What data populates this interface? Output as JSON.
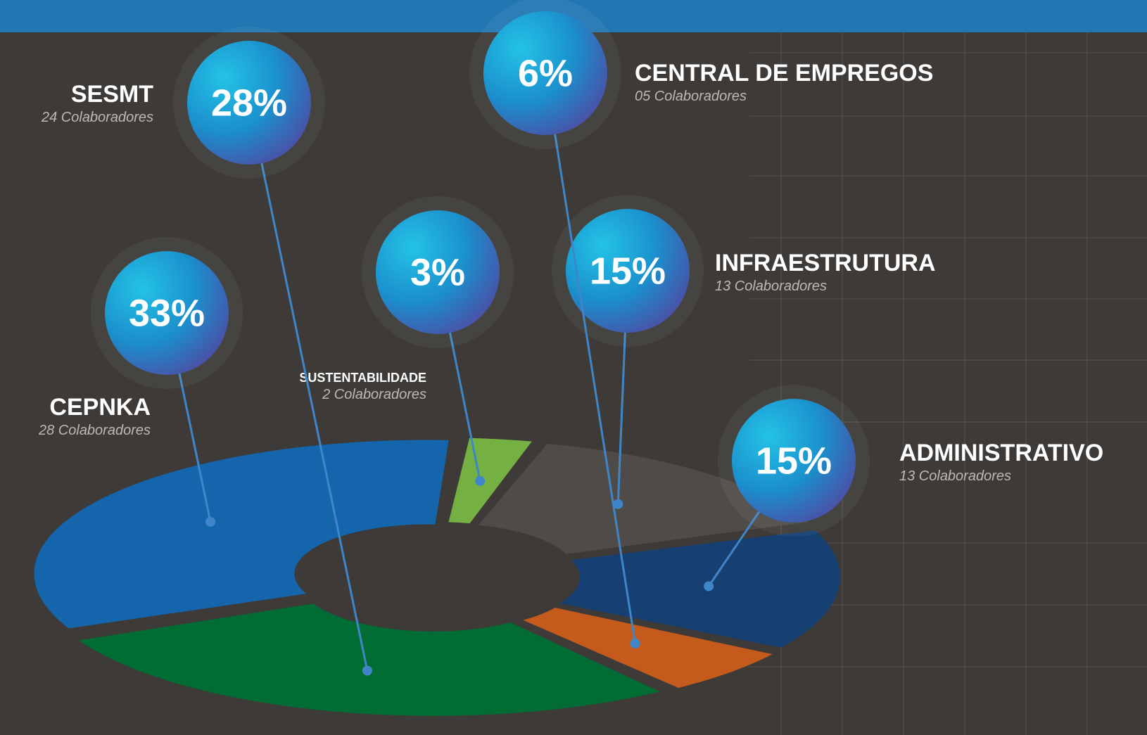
{
  "chart_data": {
    "type": "pie",
    "categories": [
      "CEPNKA",
      "SUSTENTABILIDADE",
      "INFRAESTRUTURA",
      "ADMINISTRATIVO",
      "CENTRAL DE EMPREGOS",
      "SESMT"
    ],
    "values": [
      33,
      3,
      15,
      15,
      6,
      28
    ],
    "value_labels": [
      "33%",
      "3%",
      "15%",
      "15%",
      "6%",
      "28%"
    ],
    "details": [
      "28 Colaboradores",
      "2 Colaboradores",
      "13 Colaboradores",
      "13 Colaboradores",
      "05 Colaboradores",
      "24 Colaboradores"
    ],
    "colors": [
      "#1565ad",
      "#75b043",
      "#4f4b48",
      "#163f72",
      "#c45a1b",
      "#016d35"
    ]
  }
}
